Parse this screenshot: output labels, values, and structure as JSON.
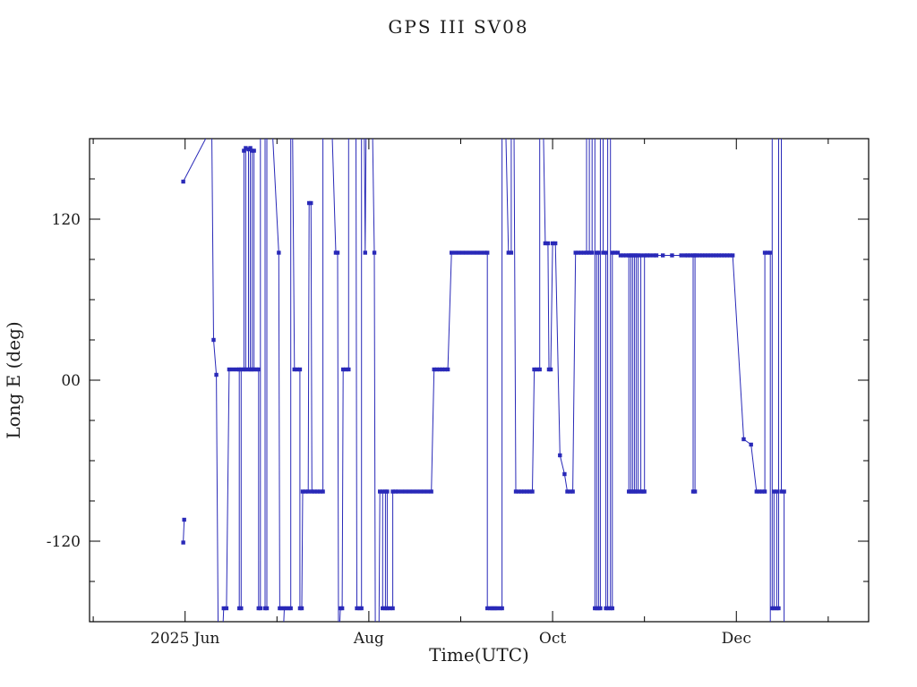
{
  "chart_data": {
    "type": "line",
    "title": "GPS III SV08",
    "xlabel": "Time(UTC)",
    "ylabel": "Long E (deg)",
    "background": "#ffffff",
    "line_color": "#2929b8",
    "axis_color": "#000000",
    "marker": "filled-square",
    "grid": false,
    "legend": null,
    "x_encoding": "decimal month of 2025 (6.0 = Jun 1, 13.0 = Jan 1 2026)",
    "y_unit": "degrees east longitude",
    "xlim": [
      4.96,
      13.44
    ],
    "ylim": [
      -180,
      180
    ],
    "x_ticks": [
      {
        "v": 6,
        "label": "2025 Jun"
      },
      {
        "v": 8,
        "label": "Aug"
      },
      {
        "v": 10,
        "label": "Oct"
      },
      {
        "v": 12,
        "label": "Dec"
      }
    ],
    "x_minor_ticks": [
      5,
      7,
      9,
      11,
      13
    ],
    "y_ticks": [
      {
        "v": 120,
        "label": "120"
      },
      {
        "v": 0,
        "label": "00"
      },
      {
        "v": -120,
        "label": "-120"
      }
    ],
    "y_minor_ticks": [
      -150,
      -90,
      -60,
      -30,
      30,
      60,
      90,
      150
    ],
    "series": [
      {
        "name": "Long E",
        "segments": [
          [
            [
              5.98,
              -121
            ],
            [
              5.99,
              -104
            ]
          ],
          [
            [
              5.98,
              148
            ],
            [
              6.27,
              186
            ]
          ],
          [
            [
              6.29,
              186
            ],
            [
              6.31,
              30
            ],
            [
              6.34,
              4
            ],
            [
              6.36,
              -186
            ]
          ],
          [
            [
              6.41,
              -186
            ],
            [
              6.42,
              -170
            ],
            [
              6.45,
              -170
            ],
            [
              6.48,
              8
            ],
            [
              6.52,
              8
            ],
            [
              6.56,
              8
            ],
            [
              6.59,
              8
            ],
            [
              6.59,
              -170
            ],
            [
              6.61,
              -170
            ],
            [
              6.61,
              8
            ],
            [
              6.64,
              8
            ],
            [
              6.64,
              171
            ],
            [
              6.66,
              173
            ],
            [
              6.66,
              8
            ],
            [
              6.69,
              8
            ],
            [
              6.69,
              172
            ],
            [
              6.71,
              173
            ],
            [
              6.71,
              8
            ],
            [
              6.73,
              8
            ],
            [
              6.73,
              171
            ],
            [
              6.75,
              171
            ],
            [
              6.75,
              8
            ],
            [
              6.78,
              8
            ],
            [
              6.8,
              8
            ],
            [
              6.8,
              -170
            ],
            [
              6.82,
              -170
            ],
            [
              6.82,
              186
            ]
          ],
          [
            [
              6.87,
              186
            ],
            [
              6.87,
              -170
            ],
            [
              6.89,
              -170
            ],
            [
              6.89,
              186
            ]
          ],
          [
            [
              6.95,
              186
            ],
            [
              7.02,
              95
            ],
            [
              7.03,
              -170
            ],
            [
              7.05,
              -170
            ]
          ],
          [
            [
              7.07,
              -186
            ],
            [
              7.08,
              -170
            ],
            [
              7.1,
              -170
            ],
            [
              7.13,
              -170
            ],
            [
              7.15,
              -170
            ],
            [
              7.15,
              186
            ]
          ],
          [
            [
              7.17,
              186
            ],
            [
              7.19,
              8
            ],
            [
              7.22,
              8
            ],
            [
              7.25,
              8
            ],
            [
              7.25,
              -170
            ],
            [
              7.27,
              -170
            ],
            [
              7.28,
              -83
            ],
            [
              7.31,
              -83
            ],
            [
              7.34,
              -83
            ],
            [
              7.35,
              132
            ],
            [
              7.37,
              132
            ],
            [
              7.38,
              -83
            ],
            [
              7.41,
              -83
            ],
            [
              7.44,
              -83
            ],
            [
              7.47,
              -83
            ],
            [
              7.5,
              -83
            ],
            [
              7.5,
              186
            ]
          ],
          [
            [
              7.6,
              186
            ],
            [
              7.64,
              95
            ],
            [
              7.66,
              95
            ],
            [
              7.67,
              -186
            ]
          ],
          [
            [
              7.68,
              -186
            ],
            [
              7.69,
              -170
            ],
            [
              7.71,
              -170
            ],
            [
              7.72,
              8
            ],
            [
              7.75,
              8
            ],
            [
              7.78,
              8
            ],
            [
              7.78,
              186
            ]
          ],
          [
            [
              7.86,
              186
            ],
            [
              7.87,
              -170
            ],
            [
              7.9,
              -170
            ],
            [
              7.92,
              -170
            ],
            [
              7.92,
              186
            ]
          ],
          [
            [
              7.95,
              186
            ],
            [
              7.96,
              95
            ],
            [
              7.97,
              186
            ]
          ],
          [
            [
              8.04,
              186
            ],
            [
              8.06,
              95
            ],
            [
              8.07,
              -186
            ]
          ],
          [
            [
              8.11,
              -186
            ],
            [
              8.12,
              -83
            ],
            [
              8.15,
              -83
            ],
            [
              8.15,
              -170
            ],
            [
              8.18,
              -170
            ],
            [
              8.18,
              -83
            ],
            [
              8.2,
              -83
            ],
            [
              8.2,
              -170
            ],
            [
              8.23,
              -170
            ],
            [
              8.26,
              -170
            ],
            [
              8.26,
              -83
            ],
            [
              8.29,
              -83
            ],
            [
              8.32,
              -83
            ],
            [
              8.36,
              -83
            ],
            [
              8.4,
              -83
            ],
            [
              8.44,
              -83
            ],
            [
              8.48,
              -83
            ],
            [
              8.52,
              -83
            ],
            [
              8.56,
              -83
            ],
            [
              8.6,
              -83
            ],
            [
              8.64,
              -83
            ],
            [
              8.68,
              -83
            ],
            [
              8.71,
              8
            ],
            [
              8.74,
              8
            ],
            [
              8.77,
              8
            ],
            [
              8.8,
              8
            ],
            [
              8.83,
              8
            ],
            [
              8.86,
              8
            ],
            [
              8.9,
              95
            ],
            [
              8.94,
              95
            ],
            [
              8.98,
              95
            ],
            [
              9.02,
              95
            ],
            [
              9.06,
              95
            ],
            [
              9.1,
              95
            ],
            [
              9.14,
              95
            ],
            [
              9.18,
              95
            ],
            [
              9.22,
              95
            ],
            [
              9.26,
              95
            ],
            [
              9.29,
              95
            ],
            [
              9.29,
              -170
            ],
            [
              9.32,
              -170
            ],
            [
              9.34,
              -170
            ],
            [
              9.36,
              -170
            ],
            [
              9.38,
              -170
            ],
            [
              9.4,
              -170
            ],
            [
              9.43,
              -170
            ],
            [
              9.45,
              -170
            ],
            [
              9.45,
              186
            ]
          ],
          [
            [
              9.49,
              186
            ],
            [
              9.52,
              95
            ],
            [
              9.55,
              95
            ],
            [
              9.55,
              186
            ]
          ],
          [
            [
              9.58,
              186
            ],
            [
              9.6,
              -83
            ],
            [
              9.63,
              -83
            ],
            [
              9.66,
              -83
            ],
            [
              9.69,
              -83
            ],
            [
              9.72,
              -83
            ],
            [
              9.75,
              -83
            ],
            [
              9.78,
              -83
            ],
            [
              9.8,
              8
            ],
            [
              9.83,
              8
            ],
            [
              9.86,
              8
            ],
            [
              9.86,
              186
            ]
          ],
          [
            [
              9.9,
              186
            ],
            [
              9.92,
              102
            ],
            [
              9.95,
              102
            ],
            [
              9.96,
              8
            ],
            [
              9.98,
              8
            ],
            [
              10.0,
              102
            ],
            [
              10.03,
              102
            ],
            [
              10.08,
              -56
            ],
            [
              10.13,
              -70
            ],
            [
              10.16,
              -83
            ],
            [
              10.19,
              -83
            ],
            [
              10.22,
              -83
            ],
            [
              10.25,
              95
            ],
            [
              10.28,
              95
            ],
            [
              10.31,
              95
            ],
            [
              10.34,
              95
            ],
            [
              10.37,
              95
            ],
            [
              10.37,
              186
            ]
          ],
          [
            [
              10.4,
              186
            ],
            [
              10.4,
              95
            ],
            [
              10.43,
              95
            ],
            [
              10.43,
              186
            ]
          ],
          [
            [
              10.46,
              186
            ],
            [
              10.46,
              -170
            ],
            [
              10.48,
              -170
            ],
            [
              10.48,
              95
            ],
            [
              10.5,
              95
            ],
            [
              10.5,
              -170
            ],
            [
              10.52,
              -170
            ],
            [
              10.52,
              186
            ]
          ],
          [
            [
              10.55,
              186
            ],
            [
              10.55,
              95
            ],
            [
              10.58,
              95
            ],
            [
              10.58,
              -170
            ],
            [
              10.6,
              -170
            ],
            [
              10.6,
              186
            ]
          ],
          [
            [
              10.63,
              186
            ],
            [
              10.63,
              -170
            ],
            [
              10.65,
              -170
            ],
            [
              10.65,
              95
            ],
            [
              10.68,
              95
            ],
            [
              10.71,
              95
            ],
            [
              10.74,
              93
            ],
            [
              10.77,
              93
            ],
            [
              10.8,
              93
            ],
            [
              10.83,
              93
            ],
            [
              10.83,
              -83
            ],
            [
              10.85,
              -83
            ],
            [
              10.85,
              93
            ],
            [
              10.87,
              93
            ],
            [
              10.87,
              -83
            ],
            [
              10.89,
              -83
            ],
            [
              10.89,
              93
            ],
            [
              10.91,
              93
            ],
            [
              10.91,
              -83
            ],
            [
              10.93,
              -83
            ],
            [
              10.93,
              93
            ],
            [
              10.96,
              93
            ],
            [
              10.96,
              -83
            ],
            [
              10.98,
              -83
            ],
            [
              11.0,
              -83
            ],
            [
              11.0,
              93
            ],
            [
              11.03,
              93
            ],
            [
              11.06,
              93
            ],
            [
              11.1,
              93
            ],
            [
              11.13,
              93
            ],
            [
              11.2,
              93
            ],
            [
              11.3,
              93
            ],
            [
              11.4,
              93
            ],
            [
              11.44,
              93
            ],
            [
              11.47,
              93
            ],
            [
              11.5,
              93
            ],
            [
              11.53,
              93
            ],
            [
              11.53,
              -83
            ],
            [
              11.55,
              -83
            ],
            [
              11.55,
              93
            ],
            [
              11.57,
              93
            ],
            [
              11.6,
              93
            ],
            [
              11.63,
              93
            ],
            [
              11.66,
              93
            ],
            [
              11.69,
              93
            ],
            [
              11.72,
              93
            ],
            [
              11.75,
              93
            ],
            [
              11.78,
              93
            ],
            [
              11.81,
              93
            ],
            [
              11.84,
              93
            ],
            [
              11.87,
              93
            ],
            [
              11.9,
              93
            ],
            [
              11.93,
              93
            ],
            [
              11.96,
              93
            ],
            [
              12.08,
              -44
            ],
            [
              12.16,
              -48
            ],
            [
              12.22,
              -83
            ],
            [
              12.25,
              -83
            ],
            [
              12.28,
              -83
            ],
            [
              12.31,
              -83
            ],
            [
              12.31,
              95
            ],
            [
              12.34,
              95
            ],
            [
              12.37,
              95
            ],
            [
              12.37,
              -186
            ]
          ],
          [
            [
              12.39,
              186
            ],
            [
              12.39,
              -170
            ],
            [
              12.41,
              -170
            ],
            [
              12.41,
              -83
            ],
            [
              12.44,
              -83
            ],
            [
              12.44,
              -170
            ],
            [
              12.46,
              -170
            ],
            [
              12.46,
              186
            ]
          ],
          [
            [
              12.49,
              186
            ],
            [
              12.49,
              -83
            ],
            [
              12.52,
              -83
            ],
            [
              12.52,
              -186
            ]
          ]
        ]
      }
    ]
  }
}
